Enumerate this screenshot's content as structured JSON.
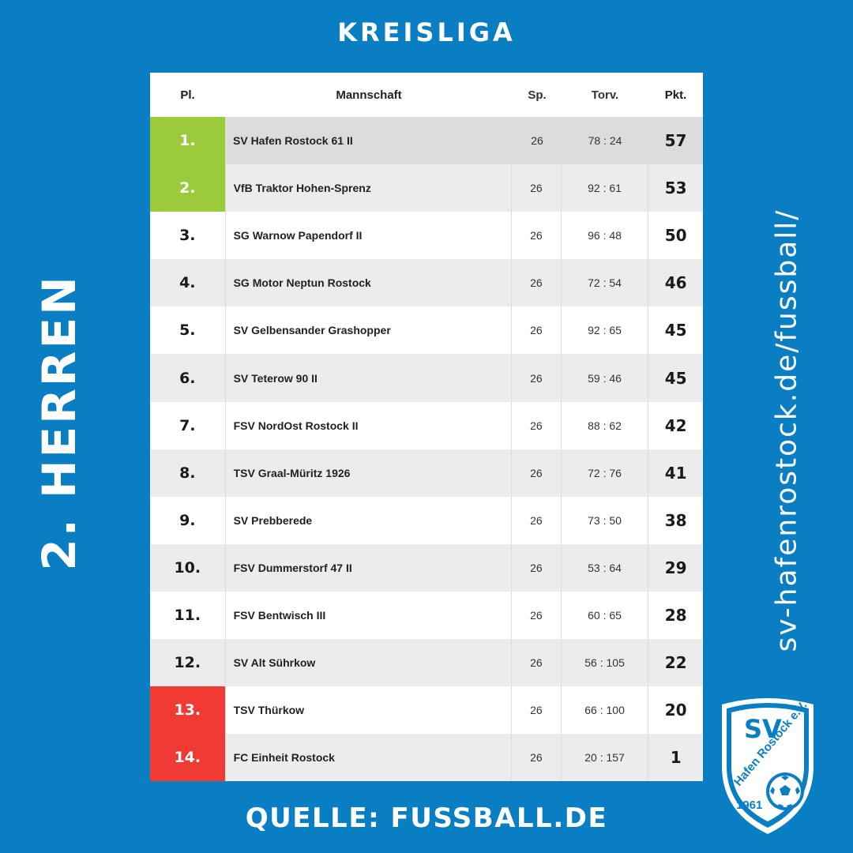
{
  "header": {
    "title": "KREISLIGA"
  },
  "side": {
    "left": "2. HERREN",
    "right": "sv-hafenrostock.de/fussball/"
  },
  "footer": {
    "source": "QUELLE: FUSSBALL.DE"
  },
  "table": {
    "columns": [
      "Pl.",
      "Mannschaft",
      "Sp.",
      "Torv.",
      "Pkt."
    ],
    "rows": [
      {
        "pl": "1.",
        "team": "SV Hafen Rostock 61 II",
        "sp": "26",
        "torv": "78 : 24",
        "pkt": "57",
        "zone": "promotion"
      },
      {
        "pl": "2.",
        "team": "VfB Traktor Hohen-Sprenz",
        "sp": "26",
        "torv": "92 : 61",
        "pkt": "53",
        "zone": "promotion"
      },
      {
        "pl": "3.",
        "team": "SG Warnow Papendorf II",
        "sp": "26",
        "torv": "96 : 48",
        "pkt": "50",
        "zone": ""
      },
      {
        "pl": "4.",
        "team": "SG Motor Neptun Rostock",
        "sp": "26",
        "torv": "72 : 54",
        "pkt": "46",
        "zone": ""
      },
      {
        "pl": "5.",
        "team": "SV Gelbensander Grashopper",
        "sp": "26",
        "torv": "92 : 65",
        "pkt": "45",
        "zone": ""
      },
      {
        "pl": "6.",
        "team": "SV Teterow 90 II",
        "sp": "26",
        "torv": "59 : 46",
        "pkt": "45",
        "zone": ""
      },
      {
        "pl": "7.",
        "team": "FSV NordOst Rostock II",
        "sp": "26",
        "torv": "88 : 62",
        "pkt": "42",
        "zone": ""
      },
      {
        "pl": "8.",
        "team": "TSV Graal-Müritz 1926",
        "sp": "26",
        "torv": "72 : 76",
        "pkt": "41",
        "zone": ""
      },
      {
        "pl": "9.",
        "team": "SV Prebberede",
        "sp": "26",
        "torv": "73 : 50",
        "pkt": "38",
        "zone": ""
      },
      {
        "pl": "10.",
        "team": "FSV Dummerstorf 47 II",
        "sp": "26",
        "torv": "53 : 64",
        "pkt": "29",
        "zone": ""
      },
      {
        "pl": "11.",
        "team": "FSV Bentwisch III",
        "sp": "26",
        "torv": "60 : 65",
        "pkt": "28",
        "zone": ""
      },
      {
        "pl": "12.",
        "team": "SV Alt Sührkow",
        "sp": "26",
        "torv": "56 : 105",
        "pkt": "22",
        "zone": ""
      },
      {
        "pl": "13.",
        "team": "TSV Thürkow",
        "sp": "26",
        "torv": "66 : 100",
        "pkt": "20",
        "zone": "relegation"
      },
      {
        "pl": "14.",
        "team": "FC Einheit Rostock",
        "sp": "26",
        "torv": "20 : 157",
        "pkt": "1",
        "zone": "relegation"
      }
    ]
  },
  "logo": {
    "top": "SV",
    "ring": "Hafen Rostock e.V.",
    "year": "1961",
    "icon": "soccer-ball-icon"
  },
  "colors": {
    "background": "#0a7ec2",
    "promotion": "#9bcb3c",
    "relegation": "#f23a34"
  }
}
